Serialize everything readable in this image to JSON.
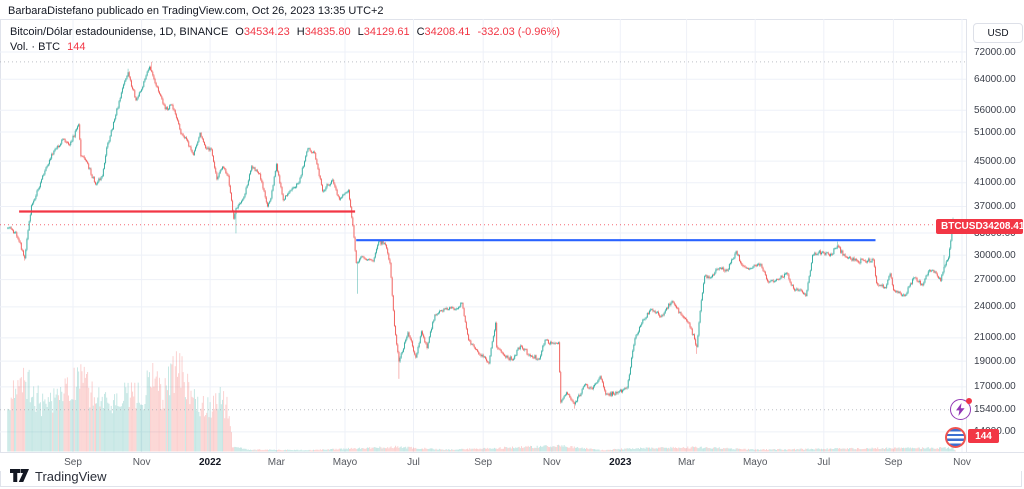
{
  "header": {
    "attribution": "BarbaraDistefano publicado en TradingView.com, Oct 26, 2023 13:35 UTC+2"
  },
  "legend": {
    "title": "Bitcoin/Dólar estadounidense, 1D, BINANCE",
    "ohlc": [
      {
        "k": "O",
        "v": "34534.23"
      },
      {
        "k": "H",
        "v": "34835.80"
      },
      {
        "k": "L",
        "v": "34129.61"
      },
      {
        "k": "C",
        "v": "34208.41"
      }
    ],
    "change": "-332.03 (-0.96%)",
    "volume_label": "Vol. · BTC",
    "volume_value": "144"
  },
  "price_scale": {
    "currency_label": "USD"
  },
  "price_tag": {
    "symbol": "BTCUSD",
    "value": "34208.41"
  },
  "attribution_logo": {
    "text": "TradingView"
  },
  "icons": {
    "bottom_right": [
      "lightning-circle-icon",
      "flag-circle-icon"
    ]
  },
  "chart_data": {
    "type": "candlestick",
    "symbol": "BTCUSD",
    "exchange": "BINANCE",
    "interval": "1D",
    "title": "Bitcoin/Dólar estadounidense, 1D, BINANCE",
    "last_bar": {
      "open": 34534.23,
      "high": 34835.8,
      "low": 34129.61,
      "close": 34208.41,
      "change": -332.03,
      "change_pct": -0.96,
      "volume_btc": 144
    },
    "colors": {
      "up": "#26a69a",
      "down": "#ef5350",
      "line_red": "#f23645",
      "line_blue": "#2962ff",
      "grid": "#eef1f8",
      "dotted": "#a8abb3"
    },
    "y_axis": {
      "scale": "log",
      "currency": "USD",
      "labels": [
        {
          "price": 72000,
          "text": "72000.00"
        },
        {
          "price": 64000,
          "text": "64000.00"
        },
        {
          "price": 56000,
          "text": "56000.00"
        },
        {
          "price": 51000,
          "text": "51000.00"
        },
        {
          "price": 45000,
          "text": "45000.00"
        },
        {
          "price": 41000,
          "text": "41000.00"
        },
        {
          "price": 37000,
          "text": "37000.00"
        },
        {
          "price": 33000,
          "text": "33000.00"
        },
        {
          "price": 30000,
          "text": "30000.00"
        },
        {
          "price": 27000,
          "text": "27000.00"
        },
        {
          "price": 24000,
          "text": "24000.00"
        },
        {
          "price": 21000,
          "text": "21000.00"
        },
        {
          "price": 19000,
          "text": "19000.00"
        },
        {
          "price": 17000,
          "text": "17000.00"
        },
        {
          "price": 15400,
          "text": "15400.00"
        },
        {
          "price": 14000,
          "text": "14000.00"
        }
      ],
      "grid_prices": [
        72000,
        64000,
        56000,
        51000,
        45000,
        41000,
        37000,
        33000,
        30000,
        27000,
        24000,
        21000,
        19000,
        17000,
        14000
      ]
    },
    "x_ticks": [
      {
        "date": "2021-09-01",
        "label": "Sep"
      },
      {
        "date": "2021-11-01",
        "label": "Nov"
      },
      {
        "date": "2022-01-01",
        "label": "2022",
        "year": true
      },
      {
        "date": "2022-03-01",
        "label": "Mar"
      },
      {
        "date": "2022-05-01",
        "label": "Mayo"
      },
      {
        "date": "2022-07-01",
        "label": "Jul"
      },
      {
        "date": "2022-09-01",
        "label": "Sep"
      },
      {
        "date": "2022-11-01",
        "label": "Nov"
      },
      {
        "date": "2023-01-01",
        "label": "2023",
        "year": true
      },
      {
        "date": "2023-03-01",
        "label": "Mar"
      },
      {
        "date": "2023-05-01",
        "label": "Mayo"
      },
      {
        "date": "2023-07-01",
        "label": "Jul"
      },
      {
        "date": "2023-09-01",
        "label": "Sep"
      },
      {
        "date": "2023-11-01",
        "label": "Nov"
      }
    ],
    "lines": [
      {
        "name": "resistance-red",
        "style": "solid",
        "color": "#f23645",
        "width": 2.2,
        "price": 36200,
        "from": "2021-07-15",
        "to": "2022-05-10"
      },
      {
        "name": "resistance-blue",
        "style": "solid",
        "color": "#2962ff",
        "width": 2.2,
        "price": 32000,
        "from": "2022-05-11",
        "to": "2023-08-16"
      },
      {
        "name": "current-price",
        "style": "dotted",
        "color": "#f23645",
        "width": 1,
        "price": 34208.41,
        "full_width": true
      },
      {
        "name": "ath-level",
        "style": "dotted",
        "color": "#a8abb3",
        "width": 1,
        "price": 69000,
        "full_width": true
      },
      {
        "name": "cycle-low-level",
        "style": "dotted",
        "color": "#a8abb3",
        "width": 1,
        "price": 15400,
        "full_width": true
      }
    ],
    "price_anchors": [
      [
        "2021-07-05",
        33700
      ],
      [
        "2021-07-12",
        33100
      ],
      [
        "2021-07-20",
        29600
      ],
      [
        "2021-07-26",
        37200
      ],
      [
        "2021-08-01",
        39900
      ],
      [
        "2021-08-08",
        43800
      ],
      [
        "2021-08-15",
        47000
      ],
      [
        "2021-08-23",
        49500
      ],
      [
        "2021-08-29",
        48200
      ],
      [
        "2021-09-06",
        52700
      ],
      [
        "2021-09-08",
        46000
      ],
      [
        "2021-09-13",
        44900
      ],
      [
        "2021-09-21",
        40700
      ],
      [
        "2021-09-27",
        42200
      ],
      [
        "2021-10-01",
        47700
      ],
      [
        "2021-10-08",
        53900
      ],
      [
        "2021-10-15",
        61600
      ],
      [
        "2021-10-20",
        66000
      ],
      [
        "2021-10-27",
        58500
      ],
      [
        "2021-11-01",
        61300
      ],
      [
        "2021-11-08",
        67550
      ],
      [
        "2021-11-12",
        64100
      ],
      [
        "2021-11-17",
        60100
      ],
      [
        "2021-11-22",
        56300
      ],
      [
        "2021-11-28",
        57300
      ],
      [
        "2021-12-03",
        53600
      ],
      [
        "2021-12-06",
        50600
      ],
      [
        "2021-12-11",
        49400
      ],
      [
        "2021-12-17",
        46200
      ],
      [
        "2021-12-23",
        50800
      ],
      [
        "2021-12-28",
        47600
      ],
      [
        "2022-01-02",
        47300
      ],
      [
        "2022-01-07",
        41600
      ],
      [
        "2022-01-12",
        43900
      ],
      [
        "2022-01-17",
        42200
      ],
      [
        "2022-01-22",
        35100
      ],
      [
        "2022-01-24",
        36700
      ],
      [
        "2022-01-31",
        38500
      ],
      [
        "2022-02-07",
        44000
      ],
      [
        "2022-02-14",
        42600
      ],
      [
        "2022-02-21",
        37000
      ],
      [
        "2022-02-24",
        38300
      ],
      [
        "2022-03-01",
        44400
      ],
      [
        "2022-03-07",
        38000
      ],
      [
        "2022-03-14",
        39700
      ],
      [
        "2022-03-21",
        41000
      ],
      [
        "2022-03-29",
        47500
      ],
      [
        "2022-04-04",
        46600
      ],
      [
        "2022-04-11",
        39500
      ],
      [
        "2022-04-20",
        41500
      ],
      [
        "2022-04-26",
        38100
      ],
      [
        "2022-05-04",
        39700
      ],
      [
        "2022-05-08",
        34100
      ],
      [
        "2022-05-11",
        29000
      ],
      [
        "2022-05-16",
        29850
      ],
      [
        "2022-05-26",
        29200
      ],
      [
        "2022-05-31",
        31800
      ],
      [
        "2022-06-06",
        31350
      ],
      [
        "2022-06-10",
        29000
      ],
      [
        "2022-06-14",
        22100
      ],
      [
        "2022-06-18",
        18970
      ],
      [
        "2022-06-26",
        21500
      ],
      [
        "2022-07-03",
        19300
      ],
      [
        "2022-07-08",
        21600
      ],
      [
        "2022-07-13",
        20100
      ],
      [
        "2022-07-20",
        23200
      ],
      [
        "2022-07-29",
        23800
      ],
      [
        "2022-08-08",
        23800
      ],
      [
        "2022-08-13",
        24400
      ],
      [
        "2022-08-19",
        20800
      ],
      [
        "2022-08-28",
        19600
      ],
      [
        "2022-09-06",
        18800
      ],
      [
        "2022-09-12",
        22400
      ],
      [
        "2022-09-13",
        20200
      ],
      [
        "2022-09-19",
        19550
      ],
      [
        "2022-09-27",
        19100
      ],
      [
        "2022-10-04",
        20300
      ],
      [
        "2022-10-13",
        19400
      ],
      [
        "2022-10-21",
        19200
      ],
      [
        "2022-10-26",
        20800
      ],
      [
        "2022-11-01",
        20500
      ],
      [
        "2022-11-07",
        20600
      ],
      [
        "2022-11-09",
        15900
      ],
      [
        "2022-11-14",
        16600
      ],
      [
        "2022-11-21",
        15780
      ],
      [
        "2022-11-30",
        17150
      ],
      [
        "2022-12-07",
        16850
      ],
      [
        "2022-12-14",
        17800
      ],
      [
        "2022-12-19",
        16450
      ],
      [
        "2022-12-30",
        16600
      ],
      [
        "2023-01-07",
        16950
      ],
      [
        "2023-01-14",
        20950
      ],
      [
        "2023-01-21",
        22700
      ],
      [
        "2023-01-29",
        23750
      ],
      [
        "2023-02-06",
        23000
      ],
      [
        "2023-02-16",
        24600
      ],
      [
        "2023-02-24",
        23200
      ],
      [
        "2023-03-03",
        22350
      ],
      [
        "2023-03-10",
        20200
      ],
      [
        "2023-03-14",
        24700
      ],
      [
        "2023-03-17",
        27400
      ],
      [
        "2023-03-22",
        27250
      ],
      [
        "2023-03-30",
        28350
      ],
      [
        "2023-04-06",
        28050
      ],
      [
        "2023-04-14",
        30500
      ],
      [
        "2023-04-19",
        28800
      ],
      [
        "2023-04-26",
        28300
      ],
      [
        "2023-05-06",
        28850
      ],
      [
        "2023-05-12",
        26800
      ],
      [
        "2023-05-18",
        26800
      ],
      [
        "2023-05-29",
        27750
      ],
      [
        "2023-06-05",
        25750
      ],
      [
        "2023-06-10",
        25850
      ],
      [
        "2023-06-15",
        25150
      ],
      [
        "2023-06-21",
        30000
      ],
      [
        "2023-06-30",
        30450
      ],
      [
        "2023-07-06",
        29900
      ],
      [
        "2023-07-13",
        31250
      ],
      [
        "2023-07-20",
        29800
      ],
      [
        "2023-07-31",
        29230
      ],
      [
        "2023-08-07",
        29180
      ],
      [
        "2023-08-14",
        29400
      ],
      [
        "2023-08-17",
        26600
      ],
      [
        "2023-08-25",
        26050
      ],
      [
        "2023-08-29",
        27700
      ],
      [
        "2023-09-01",
        25800
      ],
      [
        "2023-09-11",
        25160
      ],
      [
        "2023-09-19",
        27200
      ],
      [
        "2023-09-27",
        26350
      ],
      [
        "2023-10-02",
        27970
      ],
      [
        "2023-10-08",
        27950
      ],
      [
        "2023-10-13",
        26850
      ],
      [
        "2023-10-16",
        28520
      ],
      [
        "2023-10-20",
        29680
      ],
      [
        "2023-10-23",
        33080
      ],
      [
        "2023-10-24",
        33900
      ],
      [
        "2023-10-25",
        34500
      ],
      [
        "2023-10-26",
        34208.41
      ]
    ],
    "extremes": [
      [
        "2021-07-20",
        "low",
        29300
      ],
      [
        "2021-09-07",
        "high",
        52950
      ],
      [
        "2021-10-20",
        "high",
        67000
      ],
      [
        "2021-11-10",
        "high",
        69000
      ],
      [
        "2022-01-24",
        "low",
        32950
      ],
      [
        "2022-05-12",
        "low",
        25400
      ],
      [
        "2022-06-18",
        "low",
        17600
      ],
      [
        "2022-11-21",
        "low",
        15480
      ],
      [
        "2023-03-10",
        "low",
        19600
      ],
      [
        "2023-07-13",
        "high",
        31800
      ],
      [
        "2023-10-16",
        "high",
        30000
      ],
      [
        "2023-10-24",
        "high",
        35280
      ]
    ],
    "volume_anchors": [
      [
        "2021-07-05",
        0.55
      ],
      [
        "2021-07-21",
        0.75
      ],
      [
        "2021-08-05",
        0.5
      ],
      [
        "2021-08-20",
        0.6
      ],
      [
        "2021-09-07",
        0.8
      ],
      [
        "2021-09-21",
        0.6
      ],
      [
        "2021-10-06",
        0.55
      ],
      [
        "2021-10-20",
        0.65
      ],
      [
        "2021-11-03",
        0.6
      ],
      [
        "2021-11-10",
        0.9
      ],
      [
        "2021-11-20",
        0.6
      ],
      [
        "2021-12-04",
        1.0
      ],
      [
        "2021-12-14",
        0.6
      ],
      [
        "2021-12-28",
        0.45
      ],
      [
        "2022-01-10",
        0.55
      ],
      [
        "2022-01-18",
        0.45
      ],
      [
        "2022-01-21",
        0.05
      ],
      [
        "2022-02-05",
        0.02
      ],
      [
        "2022-04-01",
        0.015
      ],
      [
        "2022-06-14",
        0.05
      ],
      [
        "2022-08-01",
        0.02
      ],
      [
        "2022-11-09",
        0.06
      ],
      [
        "2022-12-15",
        0.015
      ],
      [
        "2023-01-14",
        0.035
      ],
      [
        "2023-03-14",
        0.045
      ],
      [
        "2023-05-01",
        0.02
      ],
      [
        "2023-08-17",
        0.035
      ],
      [
        "2023-10-24",
        0.04
      ],
      [
        "2023-10-26",
        0.012
      ]
    ],
    "volume_last": "144"
  }
}
